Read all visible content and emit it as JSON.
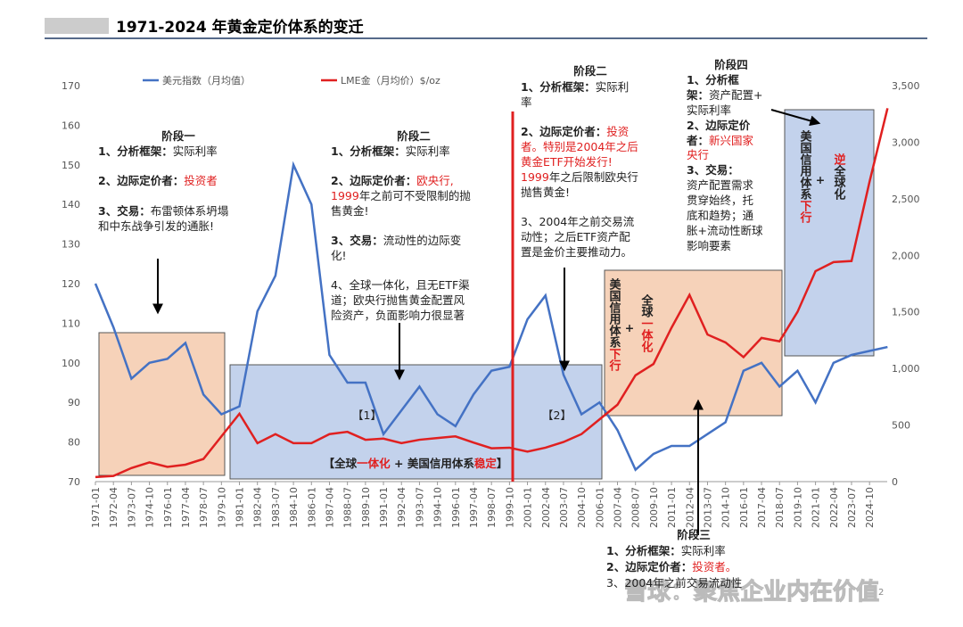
{
  "header": {
    "title": "1971-2024 年黄金定价体系的变迁"
  },
  "chart_data": {
    "type": "line",
    "categories": [
      "1971-01",
      "1972-04",
      "1973-07",
      "1974-10",
      "1976-01",
      "1977-04",
      "1978-07",
      "1979-10",
      "1981-01",
      "1982-04",
      "1983-07",
      "1984-10",
      "1986-01",
      "1987-04",
      "1988-07",
      "1989-10",
      "1991-01",
      "1992-04",
      "1993-07",
      "1994-10",
      "1996-01",
      "1997-04",
      "1998-07",
      "1999-10",
      "2001-01",
      "2002-04",
      "2003-07",
      "2004-10",
      "2006-01",
      "2007-04",
      "2008-07",
      "2009-10",
      "2011-01",
      "2012-04",
      "2013-07",
      "2014-10",
      "2016-01",
      "2017-04",
      "2018-07",
      "2019-10",
      "2021-01",
      "2022-04",
      "2023-07",
      "2024-10",
      null
    ],
    "series": [
      {
        "name": "美元指数（月均值）",
        "color": "#4472c4",
        "values": [
          120,
          109,
          96,
          100,
          101,
          105,
          92,
          87,
          89,
          113,
          122,
          150,
          140,
          102,
          95,
          95,
          82,
          88,
          94,
          87,
          84,
          92,
          98,
          99,
          111,
          117,
          97,
          87,
          90,
          83,
          73,
          77,
          79,
          79,
          82,
          85,
          98,
          100,
          94,
          98,
          90,
          100,
          102,
          103,
          104
        ]
      },
      {
        "name": "LME金（月均价）$/oz",
        "color": "#e02020",
        "axis": "y2",
        "values": [
          40,
          50,
          120,
          170,
          130,
          150,
          200,
          400,
          600,
          340,
          420,
          340,
          340,
          420,
          440,
          370,
          380,
          340,
          370,
          385,
          400,
          345,
          295,
          300,
          265,
          300,
          350,
          420,
          550,
          680,
          940,
          1040,
          1360,
          1650,
          1300,
          1230,
          1100,
          1270,
          1240,
          1500,
          1860,
          1940,
          1950,
          2650,
          3300
        ]
      }
    ],
    "ylim": [
      70,
      170
    ],
    "yticks": [
      70,
      80,
      90,
      100,
      110,
      120,
      130,
      140,
      150,
      160,
      170
    ],
    "y2lim": [
      0,
      3500
    ],
    "y2ticks": [
      0,
      500,
      {
        "value": 1000,
        "label": "1,000"
      },
      {
        "value": 1500,
        "label": "1,500"
      },
      {
        "value": 2000,
        "label": "2,000"
      },
      {
        "value": 2500,
        "label": "2,500"
      },
      {
        "value": 3000,
        "label": "3,000"
      },
      {
        "value": 3500,
        "label": "3,500"
      }
    ],
    "annotations": [
      {
        "title": "阶段一",
        "lines": [
          [
            {
              "text": "1、分析框架：",
              "bold": true
            },
            {
              "text": "实际利率"
            }
          ],
          [
            {
              "text": "2、边际定价者：",
              "bold": true
            },
            {
              "text": "投资者",
              "red": true
            }
          ],
          [
            {
              "text": "3、交易：",
              "bold": true
            },
            {
              "text": "布雷顿体系坍塌"
            }
          ],
          [
            {
              "text": "和中东战争引发的通胀!"
            }
          ]
        ]
      },
      {
        "title": "阶段二",
        "lines": [
          [
            {
              "text": "1、分析框架：",
              "bold": true
            },
            {
              "text": "实际利率"
            }
          ],
          [
            {
              "text": "2、边际定价者：",
              "bold": true
            },
            {
              "text": "欧央行,",
              "red": true
            }
          ],
          [
            {
              "text": "1999",
              "red": true
            },
            {
              "text": "年之前可不受限制的抛"
            }
          ],
          [
            {
              "text": "售黄金!"
            }
          ],
          [
            {
              "text": "3、交易：",
              "bold": true
            },
            {
              "text": "流动性的边际变"
            }
          ],
          [
            {
              "text": "化!"
            }
          ],
          [
            {
              "text": "4、全球一体化，且无ETF渠"
            }
          ],
          [
            {
              "text": "道；欧央行抛售黄金配置风"
            }
          ],
          [
            {
              "text": "险资产，负面影响力很显著"
            }
          ]
        ]
      },
      {
        "title": "阶段二",
        "lines": [
          [
            {
              "text": "1、分析框架：",
              "bold": true
            },
            {
              "text": "实际利"
            }
          ],
          [
            {
              "text": "率"
            }
          ],
          [
            {
              "text": "2、边际定价者：",
              "bold": true
            },
            {
              "text": "投资",
              "red": true
            }
          ],
          [
            {
              "text": "者。特别是2004年之后",
              "red": true
            }
          ],
          [
            {
              "text": "黄金ETF开始发行!",
              "red": true
            }
          ],
          [
            {
              "text": "1999",
              "red": true
            },
            {
              "text": "年之后限制欧央行"
            }
          ],
          [
            {
              "text": "抛售黄金!"
            }
          ],
          [
            {
              "text": "3、2004年之前交易流"
            }
          ],
          [
            {
              "text": "动性；之后ETF资产配"
            }
          ],
          [
            {
              "text": "置是金价主要推动力。"
            }
          ]
        ]
      },
      {
        "title": "阶段四",
        "lines": [
          [
            {
              "text": "1、分析框",
              "bold": true
            }
          ],
          [
            {
              "text": "架：",
              "bold": true
            },
            {
              "text": "资产配置+"
            }
          ],
          [
            {
              "text": "实际利率"
            }
          ],
          [
            {
              "text": "2、边际定价",
              "bold": true
            }
          ],
          [
            {
              "text": "者：",
              "bold": true
            },
            {
              "text": "新兴国家",
              "red": true
            }
          ],
          [
            {
              "text": "央行",
              "red": true
            }
          ],
          [
            {
              "text": "3、交易：",
              "bold": true
            }
          ],
          [
            {
              "text": "资产配置需求"
            }
          ],
          [
            {
              "text": "贯穿始终，托"
            }
          ],
          [
            {
              "text": "底和趋势；通"
            }
          ],
          [
            {
              "text": "胀+流动性断球"
            }
          ],
          [
            {
              "text": "影响要素"
            }
          ]
        ]
      },
      {
        "title": "阶段三",
        "lines": [
          [
            {
              "text": "1、分析框架：",
              "bold": true
            },
            {
              "text": "实际利率"
            }
          ],
          [
            {
              "text": "2、边际定价者：",
              "bold": true
            },
            {
              "text": "投资者。",
              "red": true
            }
          ],
          [
            {
              "text": "3、2004年之前交易流动性"
            }
          ]
        ]
      }
    ],
    "box_labels": [
      [
        {
          "text": "【1】"
        }
      ],
      [
        {
          "text": "【2】"
        }
      ],
      [
        {
          "text": "【全球",
          "bold": true
        },
        {
          "text": "一体化",
          "bold": true,
          "red": true
        },
        {
          "text": " + 美国信用体系",
          "bold": true
        },
        {
          "text": "稳定",
          "bold": true,
          "red": true
        },
        {
          "text": "】",
          "bold": true
        }
      ],
      [
        {
          "text": "美国信用体系",
          "bold": true
        },
        {
          "text": "下行",
          "bold": true,
          "red": true
        }
      ],
      [
        {
          "text": "+",
          "bold": true
        }
      ],
      [
        {
          "text": "全球",
          "bold": true
        },
        {
          "text": "一体化",
          "bold": true,
          "red": true
        }
      ],
      [
        {
          "text": "美国信用体系",
          "bold": true
        },
        {
          "text": "下行",
          "bold": true,
          "red": true
        }
      ],
      [
        {
          "text": "+",
          "bold": true
        }
      ],
      [
        {
          "text": "逆",
          "bold": true,
          "red": true
        },
        {
          "text": "全球化",
          "bold": true
        }
      ]
    ]
  },
  "footer": {
    "watermark": "雪球：聚焦企业内在价值",
    "page": "2"
  }
}
